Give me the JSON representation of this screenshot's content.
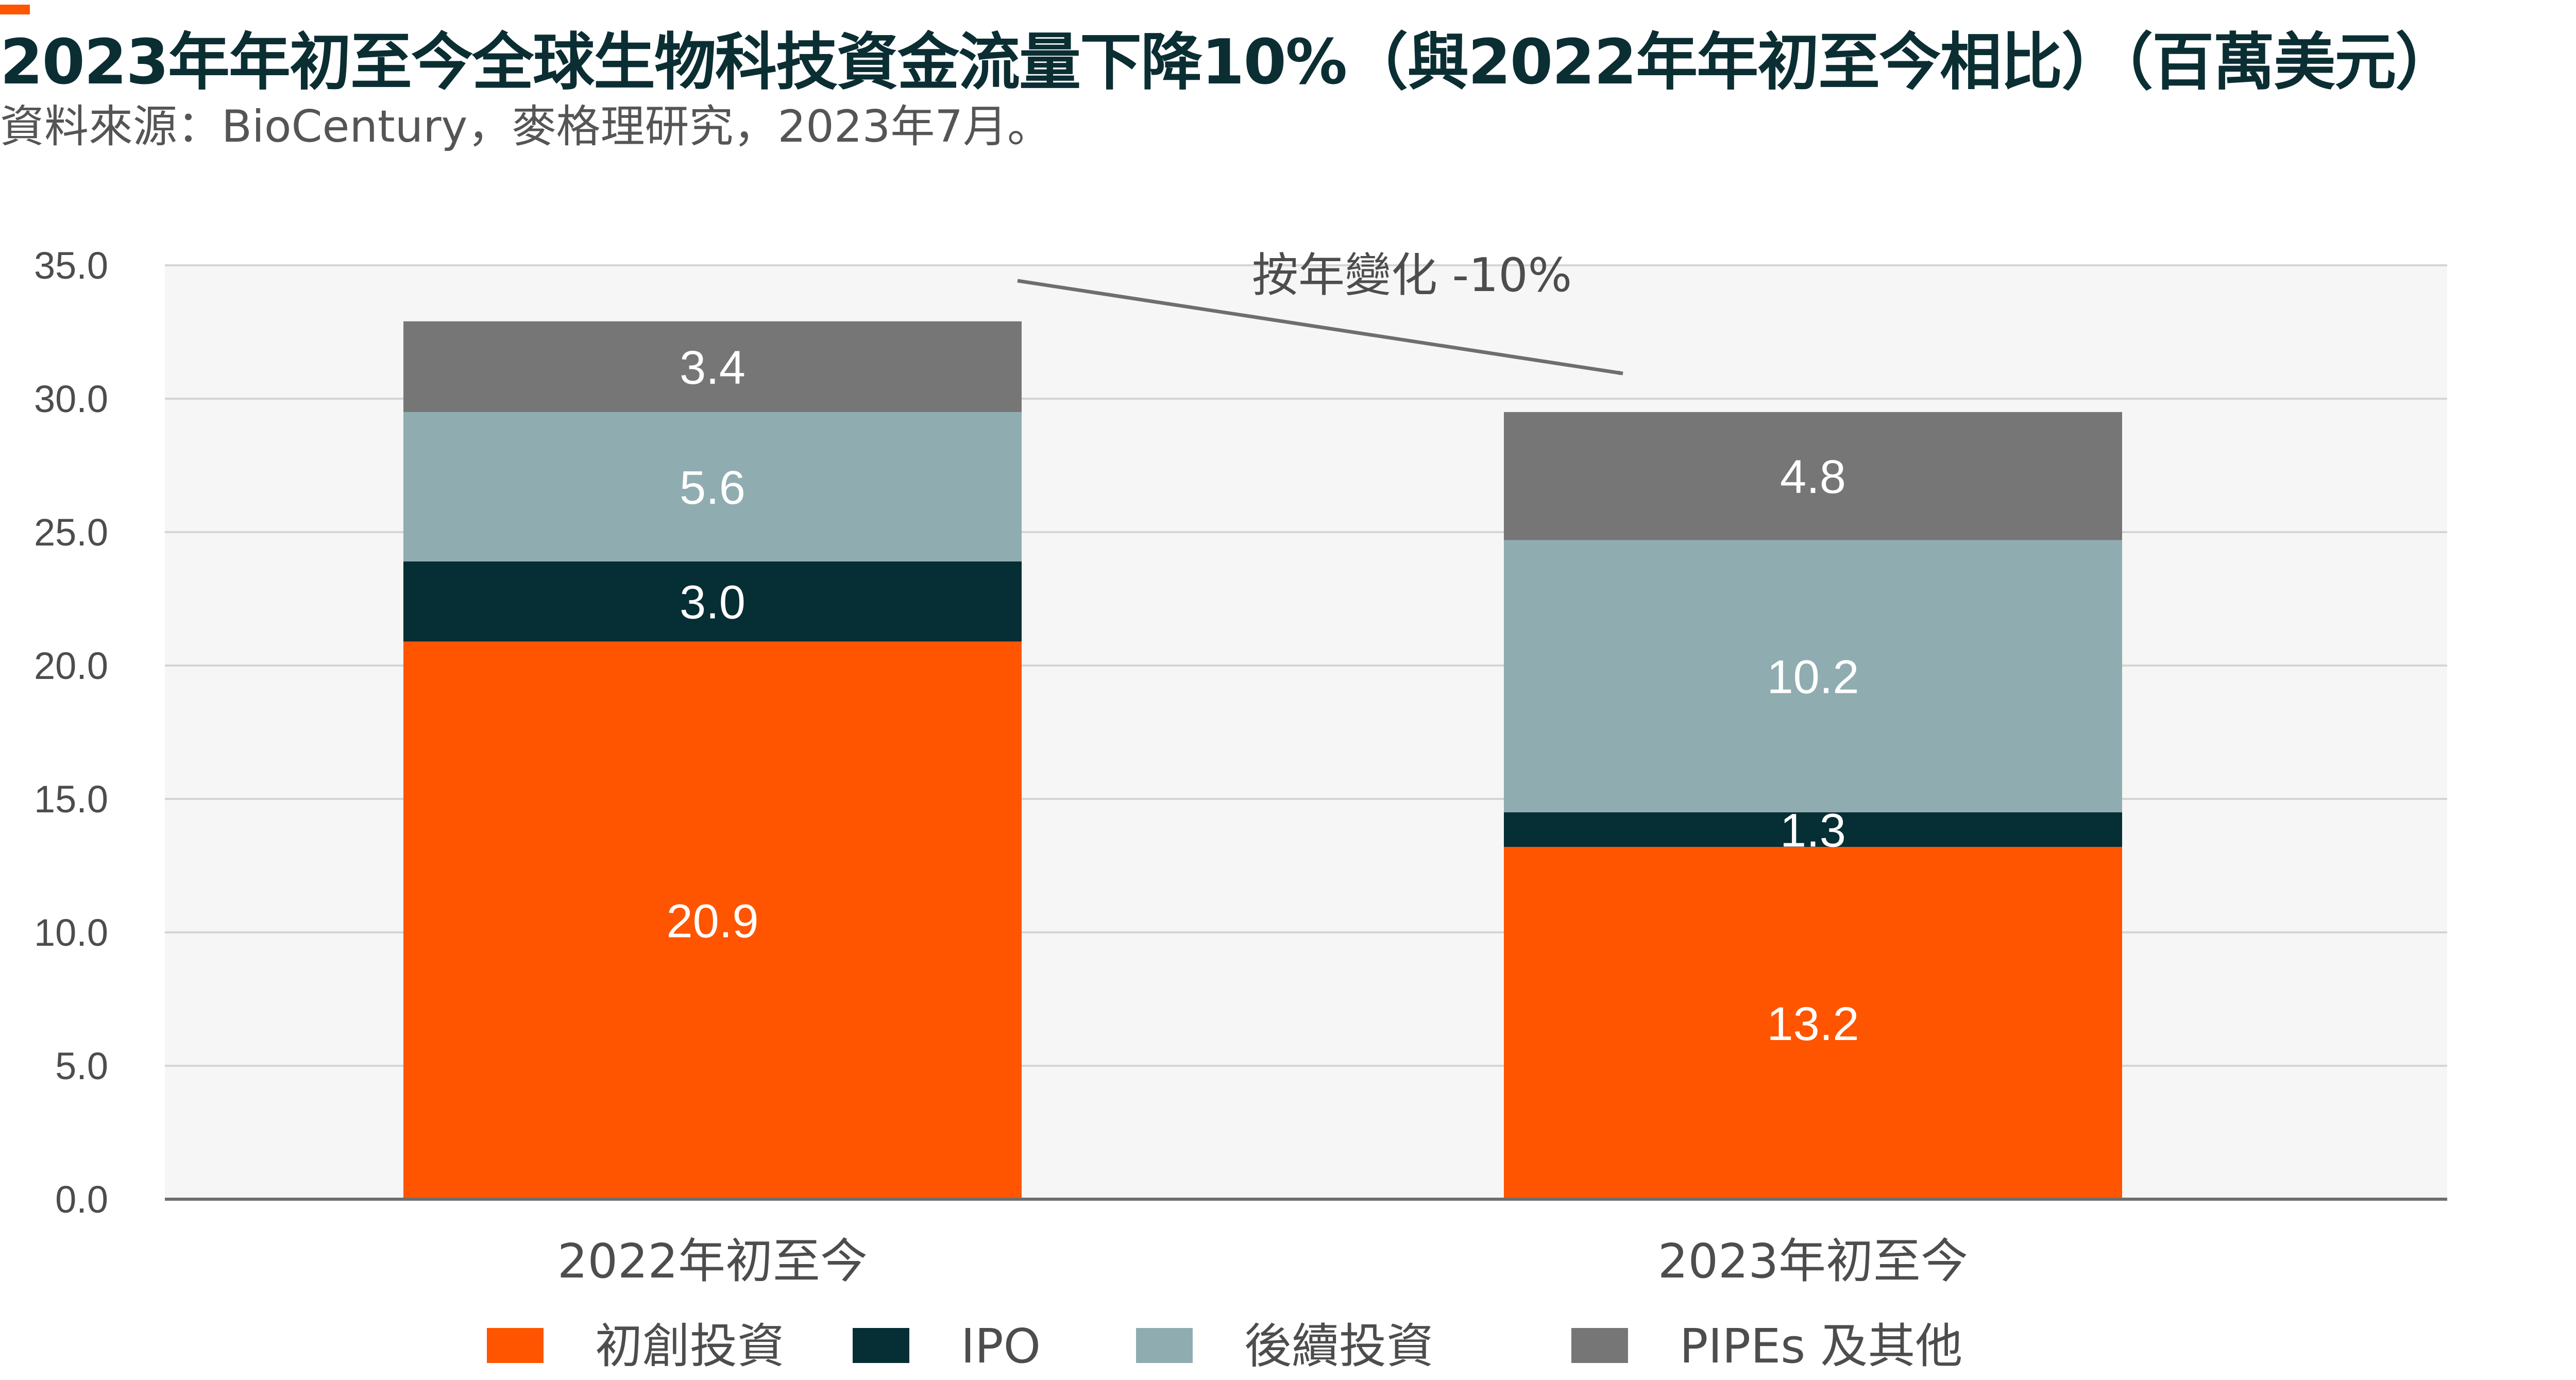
{
  "title": "2023年年初至今全球生物科技資金流量下降10%（與2022年年初至今相比）（百萬美元）",
  "subtitle": "資料來源：BioCentury，麥格理研究，2023年7月。",
  "colors": {
    "accent": "#FF5500",
    "title": "#0B2E33",
    "plot_background": "#F5F6F5",
    "gridline": "#D4D6D4",
    "axis": "#6e6e6e",
    "arrow": "#6e6e6e"
  },
  "chart_data": {
    "type": "bar",
    "stacked": true,
    "title": "2023年年初至今全球生物科技資金流量下降10%（與2022年年初至今相比）（百萬美元）",
    "xlabel": "",
    "ylabel": "",
    "ylim": [
      0,
      35
    ],
    "ytick_step": 5,
    "ytick_labels": [
      "0.0",
      "5.0",
      "10.0",
      "15.0",
      "20.0",
      "25.0",
      "30.0",
      "35.0"
    ],
    "grid": true,
    "legend_position": "bottom",
    "categories": [
      "2022年初至今",
      "2023年初至今"
    ],
    "series": [
      {
        "name": "初創投資",
        "color": "#FF5500",
        "values": [
          20.9,
          13.2
        ],
        "labels": [
          "20.9",
          "13.2"
        ]
      },
      {
        "name": "IPO",
        "color": "#062E35",
        "values": [
          3.0,
          1.3
        ],
        "labels": [
          "3.0",
          "1.3"
        ]
      },
      {
        "name": "後續投資",
        "color": "#8FADB0",
        "values": [
          5.6,
          10.2
        ],
        "labels": [
          "5.6",
          "10.2"
        ]
      },
      {
        "name": "PIPEs 及其他",
        "color": "#767676",
        "values": [
          3.4,
          4.8
        ],
        "labels": [
          "3.4",
          "4.8"
        ]
      }
    ],
    "annotations": [
      {
        "text": "按年變化 -10%",
        "type": "arrow",
        "from_category": 0,
        "to_category": 1
      }
    ]
  }
}
